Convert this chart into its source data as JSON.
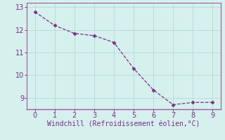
{
  "x": [
    0,
    1,
    2,
    3,
    4,
    5,
    6,
    7,
    8,
    9
  ],
  "y": [
    12.8,
    12.2,
    11.85,
    11.75,
    11.45,
    10.3,
    9.35,
    8.7,
    8.8,
    8.8
  ],
  "line_color": "#7b2d8b",
  "marker": "D",
  "marker_size": 2.5,
  "xlabel": "Windchill (Refroidissement éolien,°C)",
  "xlabel_color": "#7b2d8b",
  "xlim": [
    -0.4,
    9.4
  ],
  "ylim": [
    8.5,
    13.2
  ],
  "yticks": [
    9,
    10,
    11,
    12,
    13
  ],
  "xticks": [
    0,
    1,
    2,
    3,
    4,
    5,
    6,
    7,
    8,
    9
  ],
  "background_color": "#d6f0ed",
  "grid_color": "#b8dcd8",
  "tick_color": "#7b2d8b",
  "spine_color": "#9b59a0",
  "xlabel_fontsize": 7.0,
  "tick_fontsize": 7
}
